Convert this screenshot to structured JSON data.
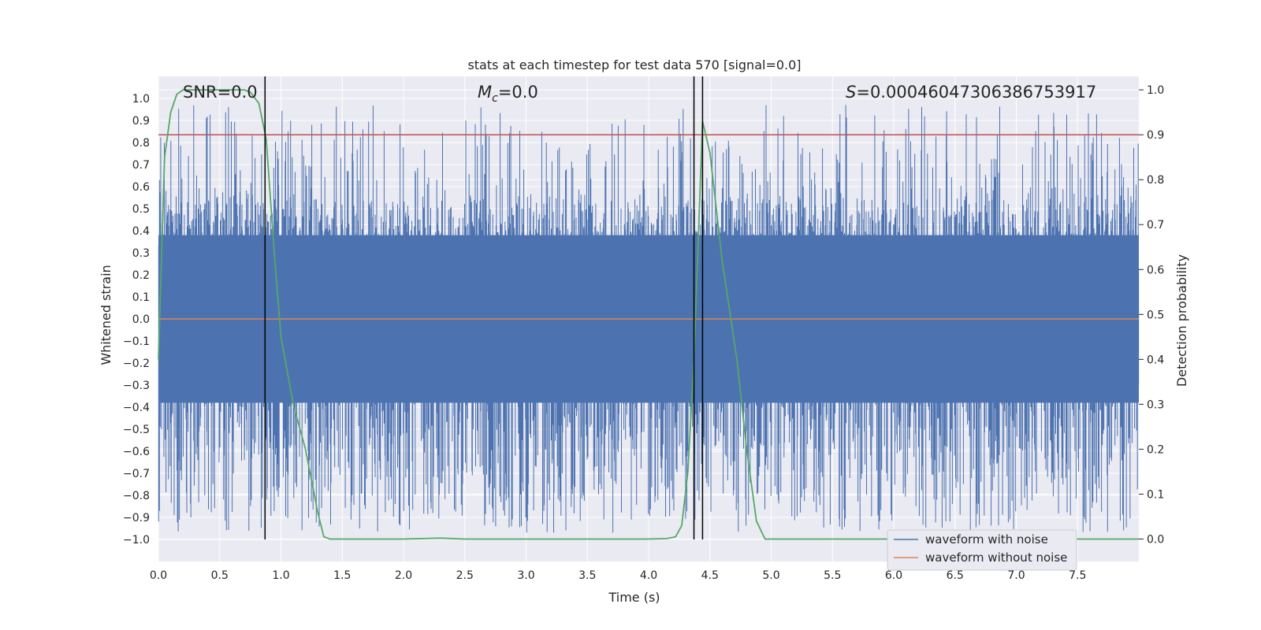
{
  "chart_data": {
    "type": "line",
    "title": "stats at each timestep for test data 570 [signal=0.0]",
    "xlabel": "Time (s)",
    "ylabel": "Whitened strain",
    "y2label": "Detection probability",
    "xlim": [
      0.0,
      8.0
    ],
    "ylim": [
      -1.1,
      1.1
    ],
    "y2lim": [
      -0.05,
      1.03
    ],
    "xticks": [
      0.0,
      0.5,
      1.0,
      1.5,
      2.0,
      2.5,
      3.0,
      3.5,
      4.0,
      4.5,
      5.0,
      5.5,
      6.0,
      6.5,
      7.0,
      7.5
    ],
    "xtick_labels": [
      "0.0",
      "0.5",
      "1.0",
      "1.5",
      "2.0",
      "2.5",
      "3.0",
      "3.5",
      "4.0",
      "4.5",
      "5.0",
      "5.5",
      "6.0",
      "6.5",
      "7.0",
      "7.5"
    ],
    "yticks": [
      1.0,
      0.9,
      0.8,
      0.7,
      0.6,
      0.5,
      0.4,
      0.3,
      0.2,
      0.1,
      0.0,
      -0.1,
      -0.2,
      -0.3,
      -0.4,
      -0.5,
      -0.6,
      -0.7,
      -0.8,
      -0.9,
      -1.0
    ],
    "ytick_labels": [
      "1.0",
      "0.9",
      "0.8",
      "0.7",
      "0.6",
      "0.5",
      "0.4",
      "0.3",
      "0.2",
      "0.1",
      "0.0",
      "−0.1",
      "−0.2",
      "−0.3",
      "−0.4",
      "−0.5",
      "−0.6",
      "−0.7",
      "−0.8",
      "−0.9",
      "−1.0"
    ],
    "y2ticks": [
      1.0,
      0.9,
      0.8,
      0.7,
      0.6,
      0.5,
      0.4,
      0.3,
      0.2,
      0.1,
      0.0
    ],
    "y2tick_labels": [
      "1.0",
      "0.9",
      "0.8",
      "0.7",
      "0.6",
      "0.5",
      "0.4",
      "0.3",
      "0.2",
      "0.1",
      "0.0"
    ],
    "annotations": {
      "snr": "SNR=0.0",
      "mc_symbol": "M",
      "mc_sub": "c",
      "mc_value": "=0.0",
      "s_symbol": "S",
      "s_value": "=0.00046047306386753917"
    },
    "series": [
      {
        "name": "waveform with noise",
        "color": "#4c72b0",
        "envelope_typical": 0.38,
        "envelope_peak": 0.97
      },
      {
        "name": "waveform without noise",
        "color": "#dd8452",
        "values": [
          0.0,
          0.0
        ]
      }
    ],
    "detection_probability": {
      "color": "#55a868",
      "x": [
        0.0,
        0.05,
        0.1,
        0.15,
        0.2,
        0.3,
        0.5,
        0.7,
        0.75,
        0.82,
        0.88,
        0.95,
        1.0,
        1.1,
        1.2,
        1.3,
        1.35,
        1.4,
        1.45,
        1.5,
        2.0,
        2.3,
        2.5,
        3.0,
        3.5,
        4.0,
        4.15,
        4.22,
        4.27,
        4.32,
        4.37,
        4.44,
        4.5,
        4.6,
        4.72,
        4.8,
        4.88,
        4.95,
        5.5,
        6.0,
        7.0,
        7.5,
        8.0
      ],
      "y": [
        0.4,
        0.85,
        0.95,
        0.99,
        1.0,
        1.0,
        1.0,
        1.0,
        0.995,
        0.97,
        0.89,
        0.62,
        0.45,
        0.3,
        0.2,
        0.06,
        0.005,
        0.0,
        0.0,
        0.0,
        0.0,
        0.002,
        0.0,
        0.0,
        0.0,
        0.0,
        0.001,
        0.005,
        0.03,
        0.15,
        0.4,
        0.93,
        0.86,
        0.62,
        0.4,
        0.2,
        0.04,
        0.0,
        0.0,
        0.0,
        0.0,
        0.0,
        0.0
      ]
    },
    "threshold_line": {
      "color": "#c44e52",
      "y2": 0.9
    },
    "event_lines": {
      "color": "#000000",
      "x": [
        0.87,
        4.37,
        4.44
      ],
      "y_top": 1.03,
      "y_bottom": -1.0
    },
    "legend": {
      "placement": "bottom-right"
    },
    "grid": true,
    "style": {
      "background": "#eaeaf2",
      "grid_color": "#ffffff"
    }
  }
}
